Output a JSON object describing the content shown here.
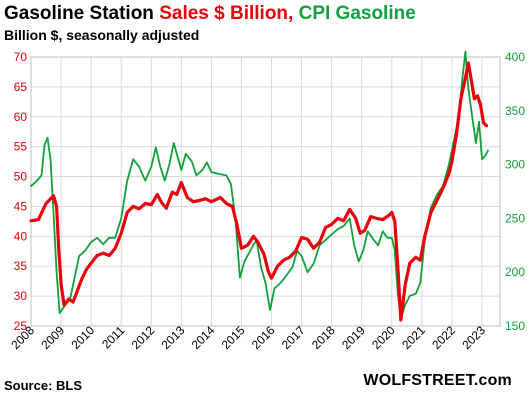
{
  "title": {
    "part1": "Gasoline  Station ",
    "part2": "Sales $ Billion,",
    "part3": " CPI Gasoline"
  },
  "subtitle": "Billion $, seasonally adjusted",
  "source": "Source: BLS",
  "brand": "WOLFSTREET.com",
  "colors": {
    "sales": "#e8000b",
    "cpi": "#12a13c",
    "grid": "#d9d9d9"
  },
  "chart_data": {
    "type": "line",
    "title": "Gasoline  Station Sales $ Billion, CPI Gasoline",
    "subtitle": "Billion $, seasonally adjusted",
    "x_ticks": [
      "2008",
      "2009",
      "2010",
      "2011",
      "2012",
      "2013",
      "2014",
      "2015",
      "2016",
      "2017",
      "2018",
      "2019",
      "2020",
      "2021",
      "2022",
      "2023"
    ],
    "xlim": [
      2008,
      2023.6
    ],
    "left_axis": {
      "ylim": [
        25,
        70
      ],
      "ticks": [
        25,
        30,
        35,
        40,
        45,
        50,
        55,
        60,
        65,
        70
      ]
    },
    "right_axis": {
      "ylim": [
        150,
        400
      ],
      "ticks": [
        150,
        200,
        250,
        300,
        350,
        400
      ]
    },
    "grid": true,
    "series": [
      {
        "name": "Sales $ Billion",
        "axis": "left",
        "points": [
          [
            2008.0,
            42.6
          ],
          [
            2008.25,
            42.8
          ],
          [
            2008.5,
            45.5
          ],
          [
            2008.75,
            46.8
          ],
          [
            2008.85,
            45.0
          ],
          [
            2008.92,
            38.0
          ],
          [
            2009.0,
            32.0
          ],
          [
            2009.1,
            28.5
          ],
          [
            2009.25,
            29.5
          ],
          [
            2009.4,
            29.0
          ],
          [
            2009.55,
            31.0
          ],
          [
            2009.7,
            33.0
          ],
          [
            2009.85,
            34.5
          ],
          [
            2010.0,
            35.5
          ],
          [
            2010.2,
            36.8
          ],
          [
            2010.4,
            37.2
          ],
          [
            2010.6,
            36.8
          ],
          [
            2010.8,
            38.0
          ],
          [
            2011.0,
            40.5
          ],
          [
            2011.2,
            44.0
          ],
          [
            2011.4,
            45.0
          ],
          [
            2011.6,
            44.6
          ],
          [
            2011.8,
            45.5
          ],
          [
            2012.0,
            45.3
          ],
          [
            2012.2,
            47.0
          ],
          [
            2012.35,
            45.6
          ],
          [
            2012.5,
            44.7
          ],
          [
            2012.7,
            47.4
          ],
          [
            2012.85,
            47.0
          ],
          [
            2013.0,
            49.0
          ],
          [
            2013.2,
            46.5
          ],
          [
            2013.4,
            45.8
          ],
          [
            2013.6,
            46.0
          ],
          [
            2013.8,
            46.3
          ],
          [
            2014.0,
            45.8
          ],
          [
            2014.3,
            46.5
          ],
          [
            2014.5,
            45.5
          ],
          [
            2014.7,
            45.0
          ],
          [
            2014.85,
            42.0
          ],
          [
            2015.0,
            38.0
          ],
          [
            2015.2,
            38.5
          ],
          [
            2015.4,
            40.0
          ],
          [
            2015.55,
            39.0
          ],
          [
            2015.75,
            37.0
          ],
          [
            2015.9,
            34.0
          ],
          [
            2016.0,
            33.0
          ],
          [
            2016.2,
            35.0
          ],
          [
            2016.4,
            36.0
          ],
          [
            2016.6,
            36.5
          ],
          [
            2016.8,
            37.5
          ],
          [
            2017.0,
            39.8
          ],
          [
            2017.2,
            39.5
          ],
          [
            2017.4,
            38.0
          ],
          [
            2017.6,
            39.0
          ],
          [
            2017.8,
            41.5
          ],
          [
            2018.0,
            42.0
          ],
          [
            2018.2,
            43.0
          ],
          [
            2018.4,
            42.6
          ],
          [
            2018.6,
            44.5
          ],
          [
            2018.8,
            43.0
          ],
          [
            2018.95,
            40.5
          ],
          [
            2019.1,
            41.0
          ],
          [
            2019.3,
            43.3
          ],
          [
            2019.5,
            43.0
          ],
          [
            2019.7,
            42.8
          ],
          [
            2019.9,
            43.5
          ],
          [
            2020.0,
            44.0
          ],
          [
            2020.1,
            42.5
          ],
          [
            2020.2,
            35.0
          ],
          [
            2020.3,
            26.0
          ],
          [
            2020.45,
            32.0
          ],
          [
            2020.6,
            35.5
          ],
          [
            2020.8,
            36.5
          ],
          [
            2020.95,
            36.0
          ],
          [
            2021.1,
            40.0
          ],
          [
            2021.3,
            44.0
          ],
          [
            2021.5,
            46.0
          ],
          [
            2021.7,
            48.0
          ],
          [
            2021.9,
            50.5
          ],
          [
            2022.0,
            52.5
          ],
          [
            2022.15,
            57.0
          ],
          [
            2022.3,
            63.0
          ],
          [
            2022.45,
            66.5
          ],
          [
            2022.55,
            69.0
          ],
          [
            2022.65,
            66.0
          ],
          [
            2022.75,
            63.0
          ],
          [
            2022.85,
            63.5
          ],
          [
            2022.95,
            62.0
          ],
          [
            2023.05,
            59.0
          ],
          [
            2023.15,
            58.5
          ]
        ]
      },
      {
        "name": "CPI Gasoline",
        "axis": "right",
        "points": [
          [
            2008.0,
            280
          ],
          [
            2008.2,
            285
          ],
          [
            2008.35,
            290
          ],
          [
            2008.45,
            318
          ],
          [
            2008.55,
            325
          ],
          [
            2008.65,
            305
          ],
          [
            2008.75,
            255
          ],
          [
            2008.85,
            200
          ],
          [
            2008.95,
            162
          ],
          [
            2009.1,
            168
          ],
          [
            2009.3,
            175
          ],
          [
            2009.45,
            195
          ],
          [
            2009.6,
            215
          ],
          [
            2009.8,
            220
          ],
          [
            2010.0,
            228
          ],
          [
            2010.2,
            232
          ],
          [
            2010.4,
            226
          ],
          [
            2010.6,
            232
          ],
          [
            2010.8,
            232
          ],
          [
            2011.0,
            250
          ],
          [
            2011.2,
            285
          ],
          [
            2011.4,
            305
          ],
          [
            2011.6,
            298
          ],
          [
            2011.8,
            285
          ],
          [
            2012.0,
            298
          ],
          [
            2012.15,
            316
          ],
          [
            2012.3,
            298
          ],
          [
            2012.45,
            285
          ],
          [
            2012.6,
            300
          ],
          [
            2012.75,
            320
          ],
          [
            2012.9,
            305
          ],
          [
            2013.0,
            295
          ],
          [
            2013.15,
            310
          ],
          [
            2013.35,
            303
          ],
          [
            2013.5,
            290
          ],
          [
            2013.7,
            295
          ],
          [
            2013.85,
            302
          ],
          [
            2014.0,
            293
          ],
          [
            2014.3,
            291
          ],
          [
            2014.5,
            290
          ],
          [
            2014.65,
            282
          ],
          [
            2014.8,
            250
          ],
          [
            2014.95,
            195
          ],
          [
            2015.1,
            210
          ],
          [
            2015.35,
            223
          ],
          [
            2015.5,
            230
          ],
          [
            2015.65,
            205
          ],
          [
            2015.8,
            190
          ],
          [
            2015.95,
            165
          ],
          [
            2016.1,
            185
          ],
          [
            2016.3,
            190
          ],
          [
            2016.5,
            197
          ],
          [
            2016.7,
            205
          ],
          [
            2016.85,
            220
          ],
          [
            2017.0,
            215
          ],
          [
            2017.2,
            200
          ],
          [
            2017.4,
            208
          ],
          [
            2017.6,
            225
          ],
          [
            2017.8,
            230
          ],
          [
            2018.0,
            235
          ],
          [
            2018.2,
            240
          ],
          [
            2018.4,
            243
          ],
          [
            2018.6,
            250
          ],
          [
            2018.75,
            225
          ],
          [
            2018.9,
            210
          ],
          [
            2019.05,
            220
          ],
          [
            2019.2,
            238
          ],
          [
            2019.4,
            230
          ],
          [
            2019.55,
            225
          ],
          [
            2019.7,
            238
          ],
          [
            2019.85,
            232
          ],
          [
            2020.0,
            232
          ],
          [
            2020.1,
            220
          ],
          [
            2020.2,
            180
          ],
          [
            2020.3,
            157
          ],
          [
            2020.45,
            170
          ],
          [
            2020.6,
            178
          ],
          [
            2020.8,
            180
          ],
          [
            2020.95,
            190
          ],
          [
            2021.1,
            230
          ],
          [
            2021.3,
            260
          ],
          [
            2021.5,
            272
          ],
          [
            2021.7,
            280
          ],
          [
            2021.9,
            300
          ],
          [
            2022.05,
            320
          ],
          [
            2022.2,
            340
          ],
          [
            2022.35,
            380
          ],
          [
            2022.45,
            405
          ],
          [
            2022.55,
            370
          ],
          [
            2022.7,
            340
          ],
          [
            2022.8,
            320
          ],
          [
            2022.9,
            340
          ],
          [
            2023.0,
            305
          ],
          [
            2023.1,
            308
          ],
          [
            2023.2,
            313
          ]
        ]
      }
    ]
  }
}
